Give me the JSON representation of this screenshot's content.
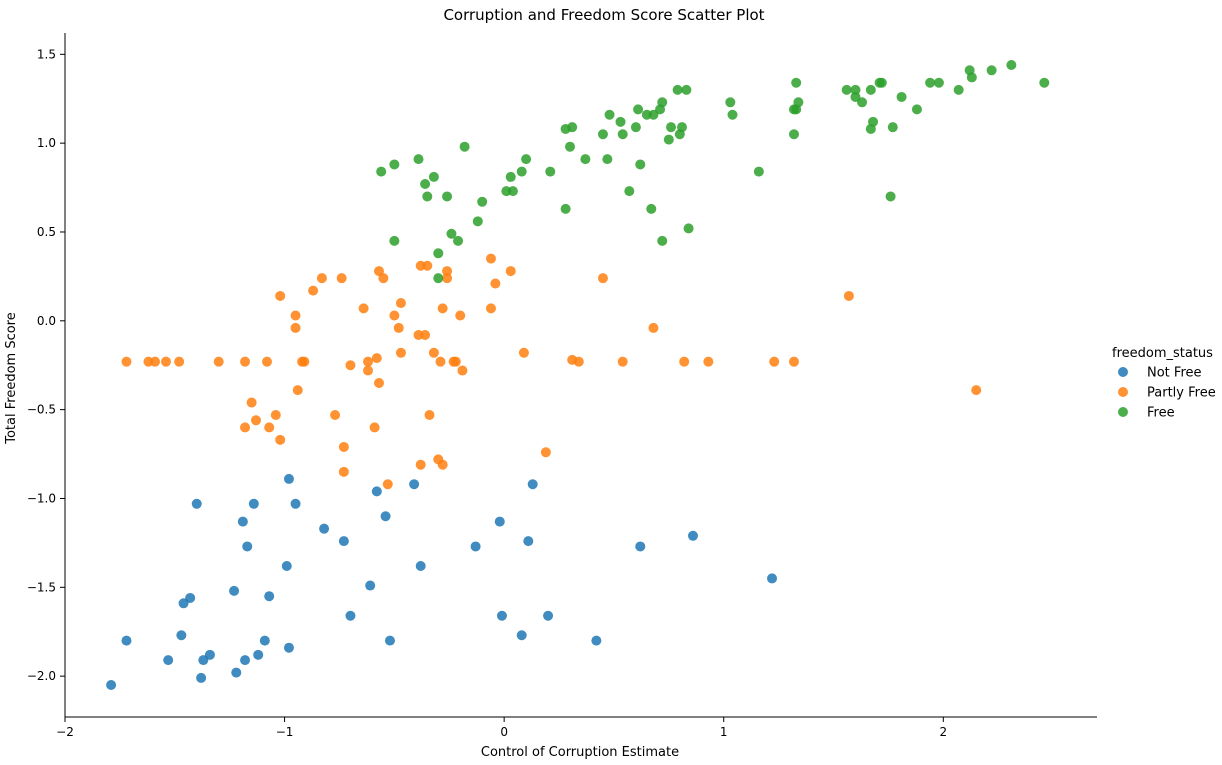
{
  "chart_data": {
    "type": "scatter",
    "title": "Corruption and Freedom Score Scatter Plot",
    "xlabel": "Control of Corruption Estimate",
    "ylabel": "Total Freedom Score",
    "xlim": [
      -2.0,
      2.7
    ],
    "ylim": [
      -2.23,
      1.62
    ],
    "xticks": [
      -2,
      -1,
      0,
      1,
      2
    ],
    "xtick_labels": [
      "−2",
      "−1",
      "0",
      "1",
      "2"
    ],
    "yticks": [
      -2.0,
      -1.5,
      -1.0,
      -0.5,
      0.0,
      0.5,
      1.0,
      1.5
    ],
    "ytick_labels": [
      "−2.0",
      "−1.5",
      "−1.0",
      "−0.5",
      "0.0",
      "0.5",
      "1.0",
      "1.5"
    ],
    "grid": false,
    "legend": {
      "title": "freedom_status",
      "position": "right"
    },
    "series": [
      {
        "name": "Not Free",
        "color": "#1f77b4",
        "points": [
          [
            -1.79,
            -2.05
          ],
          [
            -1.72,
            -1.8
          ],
          [
            -1.53,
            -1.91
          ],
          [
            -1.47,
            -1.77
          ],
          [
            -1.46,
            -1.59
          ],
          [
            -1.43,
            -1.56
          ],
          [
            -1.4,
            -1.03
          ],
          [
            -1.38,
            -2.01
          ],
          [
            -1.37,
            -1.91
          ],
          [
            -1.34,
            -1.88
          ],
          [
            -1.23,
            -1.52
          ],
          [
            -1.22,
            -1.98
          ],
          [
            -1.19,
            -1.13
          ],
          [
            -1.18,
            -1.91
          ],
          [
            -1.17,
            -1.27
          ],
          [
            -1.14,
            -1.03
          ],
          [
            -1.12,
            -1.88
          ],
          [
            -1.09,
            -1.8
          ],
          [
            -1.07,
            -1.55
          ],
          [
            -0.99,
            -1.38
          ],
          [
            -0.98,
            -1.84
          ],
          [
            -0.98,
            -0.89
          ],
          [
            -0.95,
            -1.03
          ],
          [
            -0.82,
            -1.17
          ],
          [
            -0.73,
            -1.24
          ],
          [
            -0.7,
            -1.66
          ],
          [
            -0.61,
            -1.49
          ],
          [
            -0.58,
            -0.96
          ],
          [
            -0.54,
            -1.1
          ],
          [
            -0.52,
            -1.8
          ],
          [
            -0.41,
            -0.92
          ],
          [
            -0.38,
            -1.38
          ],
          [
            -0.13,
            -1.27
          ],
          [
            -0.02,
            -1.13
          ],
          [
            -0.01,
            -1.66
          ],
          [
            0.08,
            -1.77
          ],
          [
            0.11,
            -1.24
          ],
          [
            0.13,
            -0.92
          ],
          [
            0.2,
            -1.66
          ],
          [
            0.42,
            -1.8
          ],
          [
            0.62,
            -1.27
          ],
          [
            0.86,
            -1.21
          ],
          [
            1.22,
            -1.45
          ]
        ]
      },
      {
        "name": "Partly Free",
        "color": "#ff7f0e",
        "points": [
          [
            -1.72,
            -0.23
          ],
          [
            -1.62,
            -0.23
          ],
          [
            -1.59,
            -0.23
          ],
          [
            -1.54,
            -0.23
          ],
          [
            -1.48,
            -0.23
          ],
          [
            -1.3,
            -0.23
          ],
          [
            -1.18,
            -0.23
          ],
          [
            -1.08,
            -0.23
          ],
          [
            -0.92,
            -0.23
          ],
          [
            -0.91,
            -0.23
          ],
          [
            -1.18,
            -0.6
          ],
          [
            -1.15,
            -0.46
          ],
          [
            -1.13,
            -0.56
          ],
          [
            -1.07,
            -0.6
          ],
          [
            -1.04,
            -0.53
          ],
          [
            -1.02,
            -0.67
          ],
          [
            -1.02,
            0.14
          ],
          [
            -0.95,
            0.03
          ],
          [
            -0.95,
            -0.04
          ],
          [
            -0.94,
            -0.39
          ],
          [
            -0.87,
            0.17
          ],
          [
            -0.83,
            0.24
          ],
          [
            -0.77,
            -0.53
          ],
          [
            -0.74,
            0.24
          ],
          [
            -0.73,
            -0.71
          ],
          [
            -0.73,
            -0.85
          ],
          [
            -0.7,
            -0.25
          ],
          [
            -0.64,
            0.07
          ],
          [
            -0.62,
            -0.23
          ],
          [
            -0.62,
            -0.28
          ],
          [
            -0.59,
            -0.6
          ],
          [
            -0.58,
            -0.21
          ],
          [
            -0.57,
            0.28
          ],
          [
            -0.57,
            -0.35
          ],
          [
            -0.55,
            0.24
          ],
          [
            -0.53,
            -0.92
          ],
          [
            -0.5,
            0.03
          ],
          [
            -0.48,
            -0.04
          ],
          [
            -0.47,
            0.1
          ],
          [
            -0.47,
            -0.18
          ],
          [
            -0.39,
            -0.08
          ],
          [
            -0.38,
            0.31
          ],
          [
            -0.38,
            -0.81
          ],
          [
            -0.36,
            -0.08
          ],
          [
            -0.35,
            0.31
          ],
          [
            -0.34,
            -0.53
          ],
          [
            -0.32,
            -0.18
          ],
          [
            -0.3,
            -0.78
          ],
          [
            -0.29,
            -0.23
          ],
          [
            -0.28,
            -0.81
          ],
          [
            -0.28,
            0.07
          ],
          [
            -0.26,
            0.28
          ],
          [
            -0.26,
            0.24
          ],
          [
            -0.23,
            -0.23
          ],
          [
            -0.22,
            -0.23
          ],
          [
            -0.2,
            0.03
          ],
          [
            -0.19,
            -0.28
          ],
          [
            -0.06,
            0.35
          ],
          [
            -0.06,
            0.07
          ],
          [
            -0.04,
            0.21
          ],
          [
            0.03,
            0.28
          ],
          [
            0.09,
            -0.18
          ],
          [
            0.19,
            -0.74
          ],
          [
            0.31,
            -0.22
          ],
          [
            0.34,
            -0.23
          ],
          [
            0.45,
            0.24
          ],
          [
            0.54,
            -0.23
          ],
          [
            0.68,
            -0.04
          ],
          [
            0.82,
            -0.23
          ],
          [
            0.93,
            -0.23
          ],
          [
            1.23,
            -0.23
          ],
          [
            1.32,
            -0.23
          ],
          [
            1.57,
            0.14
          ],
          [
            2.15,
            -0.39
          ]
        ]
      },
      {
        "name": "Free",
        "color": "#2ca02c",
        "points": [
          [
            -0.56,
            0.84
          ],
          [
            -0.5,
            0.45
          ],
          [
            -0.5,
            0.88
          ],
          [
            -0.39,
            0.91
          ],
          [
            -0.36,
            0.77
          ],
          [
            -0.35,
            0.7
          ],
          [
            -0.32,
            0.81
          ],
          [
            -0.3,
            0.38
          ],
          [
            -0.3,
            0.24
          ],
          [
            -0.26,
            0.7
          ],
          [
            -0.24,
            0.49
          ],
          [
            -0.21,
            0.45
          ],
          [
            -0.18,
            0.98
          ],
          [
            -0.12,
            0.56
          ],
          [
            -0.1,
            0.67
          ],
          [
            0.01,
            0.73
          ],
          [
            0.03,
            0.81
          ],
          [
            0.04,
            0.73
          ],
          [
            0.08,
            0.84
          ],
          [
            0.1,
            0.91
          ],
          [
            0.21,
            0.84
          ],
          [
            0.28,
            0.63
          ],
          [
            0.28,
            1.08
          ],
          [
            0.3,
            0.98
          ],
          [
            0.31,
            1.09
          ],
          [
            0.37,
            0.91
          ],
          [
            0.45,
            1.05
          ],
          [
            0.47,
            0.91
          ],
          [
            0.48,
            1.16
          ],
          [
            0.53,
            1.12
          ],
          [
            0.54,
            1.05
          ],
          [
            0.57,
            0.73
          ],
          [
            0.6,
            1.09
          ],
          [
            0.61,
            1.19
          ],
          [
            0.62,
            0.88
          ],
          [
            0.65,
            1.16
          ],
          [
            0.67,
            0.63
          ],
          [
            0.68,
            1.16
          ],
          [
            0.71,
            1.19
          ],
          [
            0.72,
            0.45
          ],
          [
            0.72,
            1.23
          ],
          [
            0.75,
            1.02
          ],
          [
            0.76,
            1.09
          ],
          [
            0.79,
            1.3
          ],
          [
            0.8,
            1.05
          ],
          [
            0.81,
            1.09
          ],
          [
            0.83,
            1.3
          ],
          [
            0.84,
            0.52
          ],
          [
            1.03,
            1.23
          ],
          [
            1.04,
            1.16
          ],
          [
            1.16,
            0.84
          ],
          [
            1.32,
            1.05
          ],
          [
            1.32,
            1.19
          ],
          [
            1.33,
            1.19
          ],
          [
            1.33,
            1.34
          ],
          [
            1.34,
            1.23
          ],
          [
            1.56,
            1.3
          ],
          [
            1.6,
            1.26
          ],
          [
            1.6,
            1.3
          ],
          [
            1.63,
            1.23
          ],
          [
            1.67,
            1.3
          ],
          [
            1.67,
            1.08
          ],
          [
            1.68,
            1.12
          ],
          [
            1.71,
            1.34
          ],
          [
            1.72,
            1.34
          ],
          [
            1.76,
            0.7
          ],
          [
            1.77,
            1.09
          ],
          [
            1.81,
            1.26
          ],
          [
            1.88,
            1.19
          ],
          [
            1.94,
            1.34
          ],
          [
            1.98,
            1.34
          ],
          [
            2.07,
            1.3
          ],
          [
            2.12,
            1.41
          ],
          [
            2.13,
            1.37
          ],
          [
            2.22,
            1.41
          ],
          [
            2.31,
            1.44
          ],
          [
            2.46,
            1.34
          ]
        ]
      }
    ]
  }
}
